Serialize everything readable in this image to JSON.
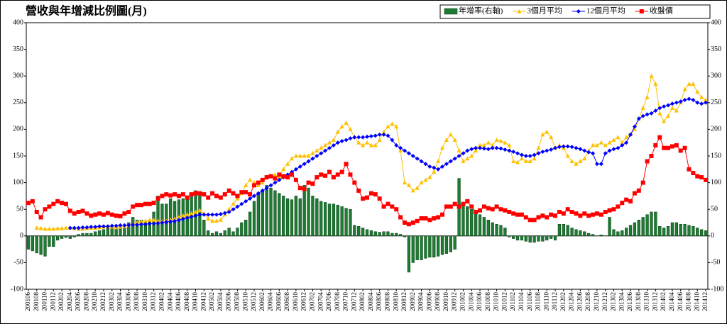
{
  "chart_data": {
    "type": "bar-line",
    "title": "營收與年增減比例圖(月)",
    "categories": [
      "200106",
      null,
      "200108",
      null,
      "200110",
      null,
      "200112",
      null,
      "200202",
      null,
      "200204",
      null,
      "200206",
      null,
      "200208",
      null,
      "200210",
      null,
      "200212",
      null,
      "200302",
      null,
      "200304",
      null,
      "200306",
      null,
      "200308",
      null,
      "200310",
      null,
      "200312",
      null,
      "200402",
      null,
      "200404",
      null,
      "200406",
      null,
      "200408",
      null,
      "200410",
      null,
      "200412",
      null,
      "200502",
      null,
      "200504",
      null,
      "200506",
      null,
      "200508",
      null,
      "200510",
      null,
      "200512",
      null,
      "200602",
      null,
      "200604",
      null,
      "200606",
      null,
      "200608",
      null,
      "200610",
      null,
      "200612",
      null,
      "200702",
      null,
      "200704",
      null,
      "200706",
      null,
      "200708",
      null,
      "200710",
      null,
      "200712",
      null,
      "200802",
      null,
      "200804",
      null,
      "200806",
      null,
      "200808",
      null,
      "200810",
      null,
      "200812",
      null,
      "200902",
      null,
      "200904",
      null,
      "200906",
      null,
      "200908",
      null,
      "200910",
      null,
      "200912",
      null,
      "201002",
      null,
      "201004",
      null,
      "201006",
      null,
      "201008",
      null,
      "201010",
      null,
      "201012",
      null,
      "201102",
      null,
      "201104",
      null,
      "201106",
      null,
      "201108",
      null,
      "201110",
      null,
      "201112",
      null,
      "201202",
      null,
      "201204",
      null,
      "201206",
      null,
      "201208",
      null,
      "201210",
      null,
      "201212",
      null,
      "201302",
      null,
      "201304",
      null,
      "201306",
      null,
      "201308",
      null,
      "201310",
      null,
      "201312",
      null,
      "201402",
      null,
      "201404",
      null,
      "201406",
      null,
      "201408",
      null,
      "201410",
      null,
      "201412"
    ],
    "ylim": [
      -100,
      400
    ],
    "yticks": [
      -100,
      -50,
      0,
      50,
      100,
      150,
      200,
      250,
      300,
      350,
      400
    ],
    "y2lim": [
      -100,
      400
    ],
    "y2ticks": [
      -100,
      -50,
      0,
      50,
      100,
      150,
      200,
      250,
      300,
      350,
      400
    ],
    "grid": false,
    "legend": "top-right",
    "series": [
      {
        "name": "年增率(右軸)",
        "kind": "bar",
        "axis": "y2",
        "color": "#1e7b32",
        "values": [
          -25,
          -28,
          -32,
          -35,
          -38,
          -20,
          -20,
          -8,
          -5,
          -3,
          -5,
          -2,
          3,
          5,
          5,
          5,
          8,
          10,
          12,
          15,
          18,
          15,
          20,
          15,
          25,
          35,
          30,
          30,
          28,
          30,
          45,
          75,
          60,
          60,
          70,
          65,
          68,
          70,
          75,
          80,
          85,
          80,
          30,
          10,
          5,
          8,
          5,
          10,
          15,
          8,
          15,
          25,
          30,
          45,
          65,
          78,
          85,
          95,
          90,
          85,
          80,
          75,
          70,
          68,
          75,
          70,
          95,
          90,
          75,
          70,
          65,
          63,
          60,
          60,
          58,
          55,
          52,
          50,
          20,
          18,
          15,
          12,
          10,
          8,
          7,
          8,
          8,
          5,
          5,
          3,
          -2,
          -68,
          -50,
          -45,
          -45,
          -42,
          -40,
          -40,
          -38,
          -35,
          -33,
          -30,
          -25,
          108,
          60,
          55,
          50,
          45,
          40,
          35,
          30,
          25,
          22,
          20,
          15,
          -2,
          -5,
          -8,
          -8,
          -10,
          -12,
          -12,
          -10,
          -10,
          -8,
          -5,
          -8,
          22,
          22,
          20,
          15,
          12,
          10,
          8,
          5,
          3,
          0,
          2,
          0,
          35,
          12,
          8,
          10,
          15,
          20,
          25,
          30,
          35,
          40,
          45,
          45,
          18,
          15,
          18,
          25,
          25,
          22,
          22,
          20,
          18,
          15,
          12,
          10
        ]
      },
      {
        "name": "3個月平均",
        "kind": "line",
        "marker": "triangle",
        "color": "#ffc000",
        "values": [
          null,
          null,
          15,
          14,
          13,
          13,
          13,
          14,
          14,
          15,
          15,
          14,
          13,
          13,
          14,
          15,
          15,
          16,
          17,
          18,
          17,
          16,
          17,
          18,
          20,
          22,
          25,
          27,
          28,
          30,
          30,
          28,
          27,
          28,
          30,
          32,
          35,
          38,
          40,
          42,
          45,
          48,
          42,
          32,
          28,
          28,
          30,
          40,
          50,
          60,
          70,
          80,
          95,
          105,
          100,
          95,
          100,
          110,
          112,
          115,
          110,
          125,
          135,
          145,
          150,
          150,
          150,
          150,
          155,
          160,
          165,
          170,
          175,
          180,
          195,
          205,
          212,
          200,
          185,
          175,
          170,
          175,
          170,
          170,
          180,
          195,
          205,
          210,
          205,
          160,
          100,
          95,
          85,
          90,
          100,
          105,
          110,
          120,
          140,
          165,
          180,
          190,
          180,
          160,
          140,
          145,
          150,
          160,
          170,
          170,
          175,
          170,
          180,
          178,
          175,
          170,
          140,
          138,
          145,
          140,
          140,
          145,
          165,
          190,
          195,
          185,
          165,
          170,
          165,
          150,
          140,
          135,
          140,
          145,
          160,
          170,
          170,
          175,
          170,
          175,
          180,
          185,
          175,
          185,
          190,
          200,
          220,
          240,
          260,
          300,
          285,
          230,
          215,
          225,
          240,
          235,
          250,
          275,
          285,
          285,
          270,
          260,
          255
        ]
      },
      {
        "name": "12個月平均",
        "kind": "line",
        "marker": "diamond",
        "color": "#0000ff",
        "values": [
          null,
          null,
          null,
          null,
          null,
          null,
          null,
          null,
          null,
          null,
          15,
          15,
          15,
          16,
          16,
          17,
          17,
          18,
          18,
          18,
          19,
          19,
          20,
          20,
          20,
          21,
          21,
          22,
          22,
          23,
          23,
          24,
          25,
          26,
          27,
          28,
          30,
          32,
          34,
          36,
          38,
          40,
          40,
          40,
          40,
          40,
          41,
          43,
          45,
          50,
          55,
          60,
          65,
          70,
          75,
          80,
          85,
          90,
          95,
          100,
          105,
          110,
          115,
          120,
          125,
          130,
          135,
          140,
          145,
          150,
          155,
          160,
          165,
          170,
          175,
          178,
          180,
          183,
          185,
          185,
          185,
          186,
          187,
          188,
          190,
          190,
          188,
          180,
          170,
          165,
          160,
          155,
          150,
          145,
          140,
          135,
          130,
          128,
          125,
          130,
          135,
          140,
          145,
          150,
          155,
          160,
          163,
          165,
          165,
          164,
          163,
          165,
          165,
          164,
          162,
          160,
          158,
          155,
          152,
          150,
          150,
          152,
          155,
          158,
          160,
          162,
          165,
          167,
          168,
          168,
          167,
          165,
          163,
          160,
          157,
          155,
          135,
          135,
          155,
          160,
          163,
          165,
          170,
          175,
          190,
          205,
          220,
          225,
          228,
          230,
          235,
          240,
          243,
          245,
          248,
          250,
          252,
          255,
          257,
          255,
          250,
          248,
          250
        ]
      },
      {
        "name": "收盤價",
        "kind": "line",
        "marker": "square",
        "color": "#ff0000",
        "values": [
          62,
          65,
          45,
          35,
          50,
          55,
          60,
          65,
          62,
          60,
          47,
          42,
          45,
          47,
          42,
          38,
          40,
          42,
          40,
          43,
          40,
          38,
          37,
          42,
          45,
          55,
          58,
          58,
          60,
          60,
          62,
          70,
          75,
          78,
          76,
          78,
          75,
          78,
          72,
          78,
          80,
          80,
          78,
          72,
          80,
          75,
          72,
          78,
          85,
          80,
          75,
          82,
          82,
          78,
          95,
          100,
          105,
          110,
          112,
          108,
          115,
          112,
          110,
          115,
          105,
          90,
          88,
          100,
          98,
          110,
          115,
          113,
          120,
          110,
          115,
          120,
          135,
          115,
          100,
          85,
          70,
          72,
          80,
          78,
          70,
          55,
          60,
          55,
          50,
          35,
          25,
          22,
          25,
          28,
          33,
          33,
          30,
          33,
          35,
          40,
          55,
          55,
          60,
          55,
          60,
          65,
          55,
          45,
          48,
          55,
          52,
          50,
          55,
          50,
          48,
          45,
          42,
          40,
          40,
          35,
          30,
          30,
          35,
          38,
          35,
          40,
          38,
          45,
          42,
          50,
          45,
          42,
          38,
          42,
          38,
          40,
          42,
          40,
          45,
          48,
          50,
          55,
          62,
          68,
          65,
          80,
          85,
          100,
          140,
          150,
          170,
          185,
          165,
          165,
          168,
          170,
          160,
          165,
          125,
          118,
          112,
          110,
          105
        ]
      }
    ]
  }
}
